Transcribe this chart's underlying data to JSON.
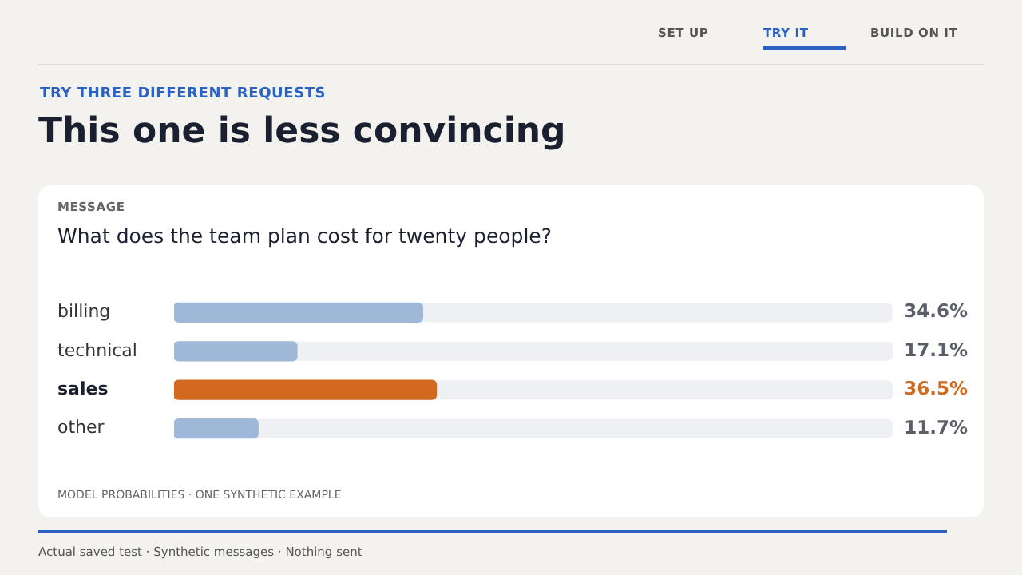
{
  "chart_data": {
    "type": "bar",
    "orientation": "horizontal",
    "title": "This one is less convincing",
    "annotations": [
      "SET UP",
      "TRY IT",
      "BUILD ON IT",
      "TRY THREE DIFFERENT REQUESTS",
      "MESSAGE",
      "What does the team plan cost for twenty people?",
      "MODEL PROBABILITIES · ONE SYNTHETIC EXAMPLE",
      "Actual saved test · Synthetic messages · Nothing sent"
    ],
    "categories": [
      "billing",
      "technical",
      "sales",
      "other"
    ],
    "values": [
      34.6,
      17.1,
      36.5,
      11.7
    ],
    "colors": [
      "#a0b8d8",
      "#a0b8d8",
      "#d2691f",
      "#a0b8d8"
    ],
    "value_labels": [
      "34.6%",
      "17.1%",
      "36.5%",
      "11.7%"
    ],
    "xlim": [
      0,
      100
    ],
    "tick_labels": "y",
    "grid": false,
    "legend": false
  }
}
